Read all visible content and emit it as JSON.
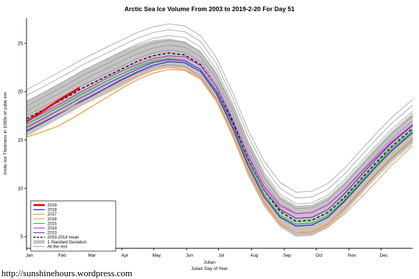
{
  "footer_link": "http://sunshinehours.wordpress.com",
  "chart_data": {
    "type": "line",
    "title": "Arctic Sea Ice Volume From 2003 to 2019-2-20  For Day 51",
    "xlabel": "Julian",
    "xlabel2": "Julian Day of Year",
    "ylabel": "Arctic Ice Thickness in 1000s of cubic km",
    "xlim": [
      1,
      365
    ],
    "ylim": [
      3.8,
      27.6
    ],
    "yticks": [
      5,
      10,
      15,
      20,
      25
    ],
    "months": [
      {
        "label": "Jan",
        "day": 1
      },
      {
        "label": "Feb",
        "day": 32
      },
      {
        "label": "Mar",
        "day": 60
      },
      {
        "label": "Apr",
        "day": 91
      },
      {
        "label": "May",
        "day": 121
      },
      {
        "label": "Jun",
        "day": 152
      },
      {
        "label": "Jul",
        "day": 182
      },
      {
        "label": "Aug",
        "day": 213
      },
      {
        "label": "Sep",
        "day": 244
      },
      {
        "label": "Oct",
        "day": 274
      },
      {
        "label": "Nov",
        "day": 305
      },
      {
        "label": "Dec",
        "day": 335
      }
    ],
    "x": [
      1,
      15,
      30,
      45,
      51,
      60,
      75,
      90,
      105,
      120,
      135,
      150,
      165,
      180,
      195,
      210,
      225,
      240,
      255,
      270,
      285,
      300,
      315,
      330,
      345,
      365
    ],
    "band": {
      "label": "1 Standard Deviation",
      "color": "#c4c4c4",
      "upper": [
        19.0,
        19.8,
        20.7,
        21.6,
        22.0,
        22.5,
        23.3,
        24.1,
        24.8,
        25.3,
        25.5,
        25.2,
        24.2,
        22.0,
        18.7,
        14.8,
        11.5,
        9.2,
        8.2,
        8.3,
        9.1,
        10.6,
        12.4,
        14.2,
        15.9,
        17.8
      ],
      "lower": [
        15.4,
        16.2,
        17.1,
        18.0,
        18.4,
        18.9,
        19.7,
        20.5,
        21.4,
        22.1,
        22.5,
        22.4,
        21.4,
        19.0,
        15.3,
        11.2,
        8.1,
        6.0,
        5.0,
        5.1,
        5.9,
        7.4,
        9.2,
        11.0,
        12.7,
        14.6
      ]
    },
    "mean": {
      "label": "2003-2014 mean",
      "color": "#000000",
      "values": [
        17.2,
        18.0,
        18.9,
        19.8,
        20.2,
        20.7,
        21.5,
        22.3,
        23.1,
        23.7,
        24.0,
        23.8,
        22.8,
        20.5,
        17.0,
        13.0,
        9.8,
        7.6,
        6.6,
        6.7,
        7.5,
        9.0,
        10.8,
        12.6,
        14.3,
        16.2
      ]
    },
    "series": [
      {
        "name": "2019",
        "color": "#e10000",
        "width": 2.8,
        "values": [
          16.9,
          17.9,
          19.0,
          20.0,
          20.4,
          null,
          null,
          null,
          null,
          null,
          null,
          null,
          null,
          null,
          null,
          null,
          null,
          null,
          null,
          null,
          null,
          null,
          null,
          null,
          null,
          null
        ]
      },
      {
        "name": "2018",
        "color": "#2020d0",
        "width": 1.2,
        "values": [
          15.9,
          16.7,
          17.6,
          18.5,
          18.9,
          19.4,
          20.3,
          21.2,
          22.0,
          22.7,
          23.1,
          23.0,
          22.1,
          19.8,
          16.3,
          12.3,
          9.1,
          7.0,
          6.1,
          6.2,
          7.0,
          8.6,
          10.4,
          12.2,
          13.9,
          15.8
        ]
      },
      {
        "name": "2017",
        "color": "#ff9421",
        "width": 1.2,
        "values": [
          15.3,
          15.8,
          16.4,
          17.3,
          17.7,
          18.3,
          19.3,
          20.3,
          21.2,
          21.9,
          22.3,
          22.2,
          21.3,
          19.0,
          15.6,
          11.7,
          8.5,
          6.3,
          5.4,
          5.5,
          6.3,
          7.9,
          9.7,
          11.5,
          13.2,
          15.2
        ]
      },
      {
        "name": "2016",
        "color": "#f8a07a",
        "width": 1.2,
        "values": [
          16.1,
          16.9,
          17.7,
          18.5,
          18.8,
          19.3,
          20.1,
          20.9,
          21.6,
          22.2,
          22.5,
          22.3,
          21.4,
          19.2,
          15.8,
          11.9,
          8.7,
          6.4,
          5.4,
          5.3,
          6.0,
          7.3,
          8.9,
          10.6,
          12.4,
          14.4
        ]
      },
      {
        "name": "2015",
        "color": "#22cc22",
        "width": 1.2,
        "values": [
          16.6,
          17.4,
          18.3,
          19.2,
          19.6,
          20.1,
          21.0,
          21.8,
          22.5,
          23.1,
          23.4,
          23.2,
          22.3,
          20.0,
          16.6,
          12.6,
          9.4,
          7.2,
          6.3,
          6.4,
          7.2,
          8.8,
          10.6,
          12.4,
          14.1,
          16.0
        ]
      },
      {
        "name": "2014",
        "color": "#d02bd0",
        "width": 1.2,
        "values": [
          16.9,
          17.7,
          18.6,
          19.5,
          19.9,
          20.4,
          21.3,
          22.1,
          22.8,
          23.4,
          23.7,
          23.6,
          22.7,
          20.5,
          17.2,
          13.4,
          10.2,
          8.2,
          7.4,
          7.5,
          8.3,
          9.8,
          11.5,
          13.2,
          14.8,
          16.6
        ]
      },
      {
        "name": "2013",
        "color": "#7b2fd4",
        "width": 1.2,
        "values": [
          16.3,
          17.1,
          18.0,
          18.9,
          19.3,
          19.8,
          20.7,
          21.5,
          22.3,
          23.0,
          23.3,
          23.2,
          22.3,
          20.1,
          16.8,
          12.9,
          9.8,
          7.8,
          6.9,
          7.0,
          7.8,
          9.4,
          11.2,
          13.0,
          14.7,
          16.5
        ]
      }
    ],
    "others": {
      "label": "All the rest",
      "color": "#8c8c8c",
      "offsets": [
        3.0,
        2.4,
        1.8,
        1.3,
        0.8,
        0.3,
        -0.5,
        -1.2
      ]
    }
  }
}
